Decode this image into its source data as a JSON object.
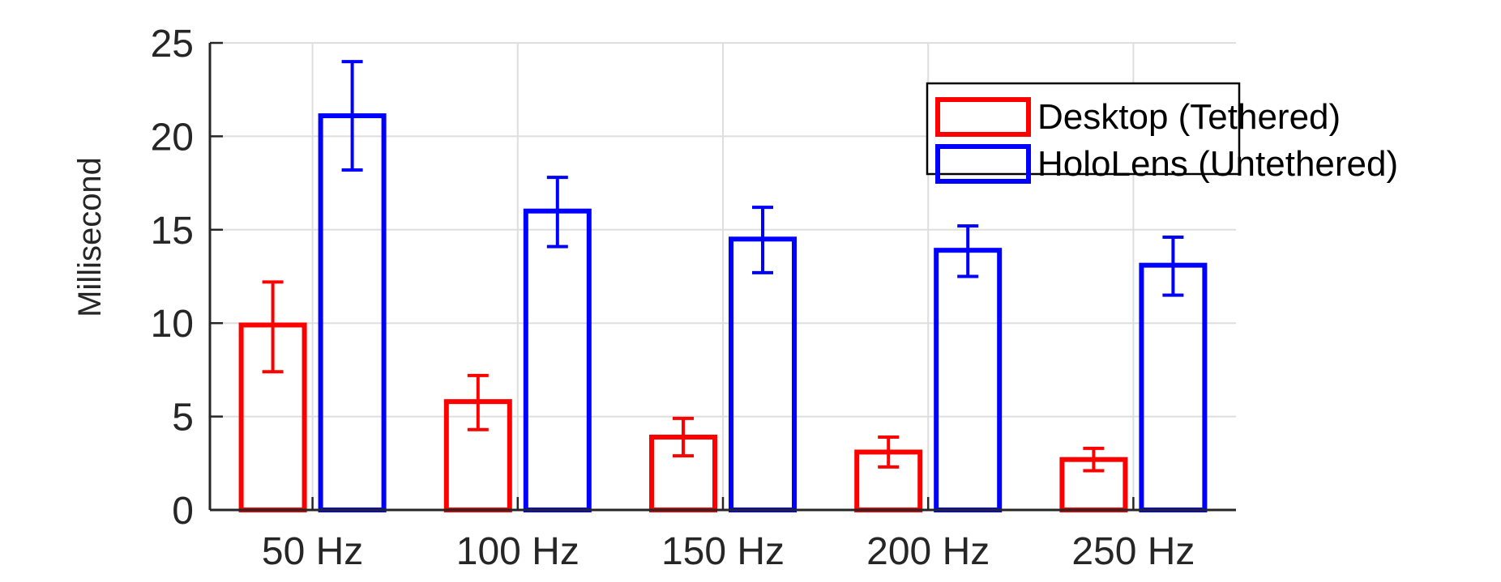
{
  "chart_data": {
    "type": "bar",
    "categories": [
      "50 Hz",
      "100 Hz",
      "150 Hz",
      "200 Hz",
      "250 Hz"
    ],
    "ylabel": "Millisecond",
    "xlabel": "",
    "ylim": [
      0,
      25
    ],
    "yticks": [
      "0",
      "5",
      "10",
      "15",
      "20",
      "25"
    ],
    "grid": true,
    "legend_position": "top-right",
    "series": [
      {
        "name": "Desktop (Tethered)",
        "color": "#ff0000",
        "values": [
          9.9,
          5.8,
          3.9,
          3.1,
          2.7
        ],
        "error_low": [
          7.4,
          4.3,
          2.9,
          2.3,
          2.1
        ],
        "error_high": [
          12.2,
          7.2,
          4.9,
          3.9,
          3.3
        ]
      },
      {
        "name": "HoloLens (Untethered)",
        "color": "#0000ff",
        "values": [
          21.1,
          16.0,
          14.5,
          13.9,
          13.1
        ],
        "error_low": [
          18.2,
          14.1,
          12.7,
          12.5,
          11.5
        ],
        "error_high": [
          24.0,
          17.8,
          16.2,
          15.2,
          14.6
        ]
      }
    ]
  }
}
